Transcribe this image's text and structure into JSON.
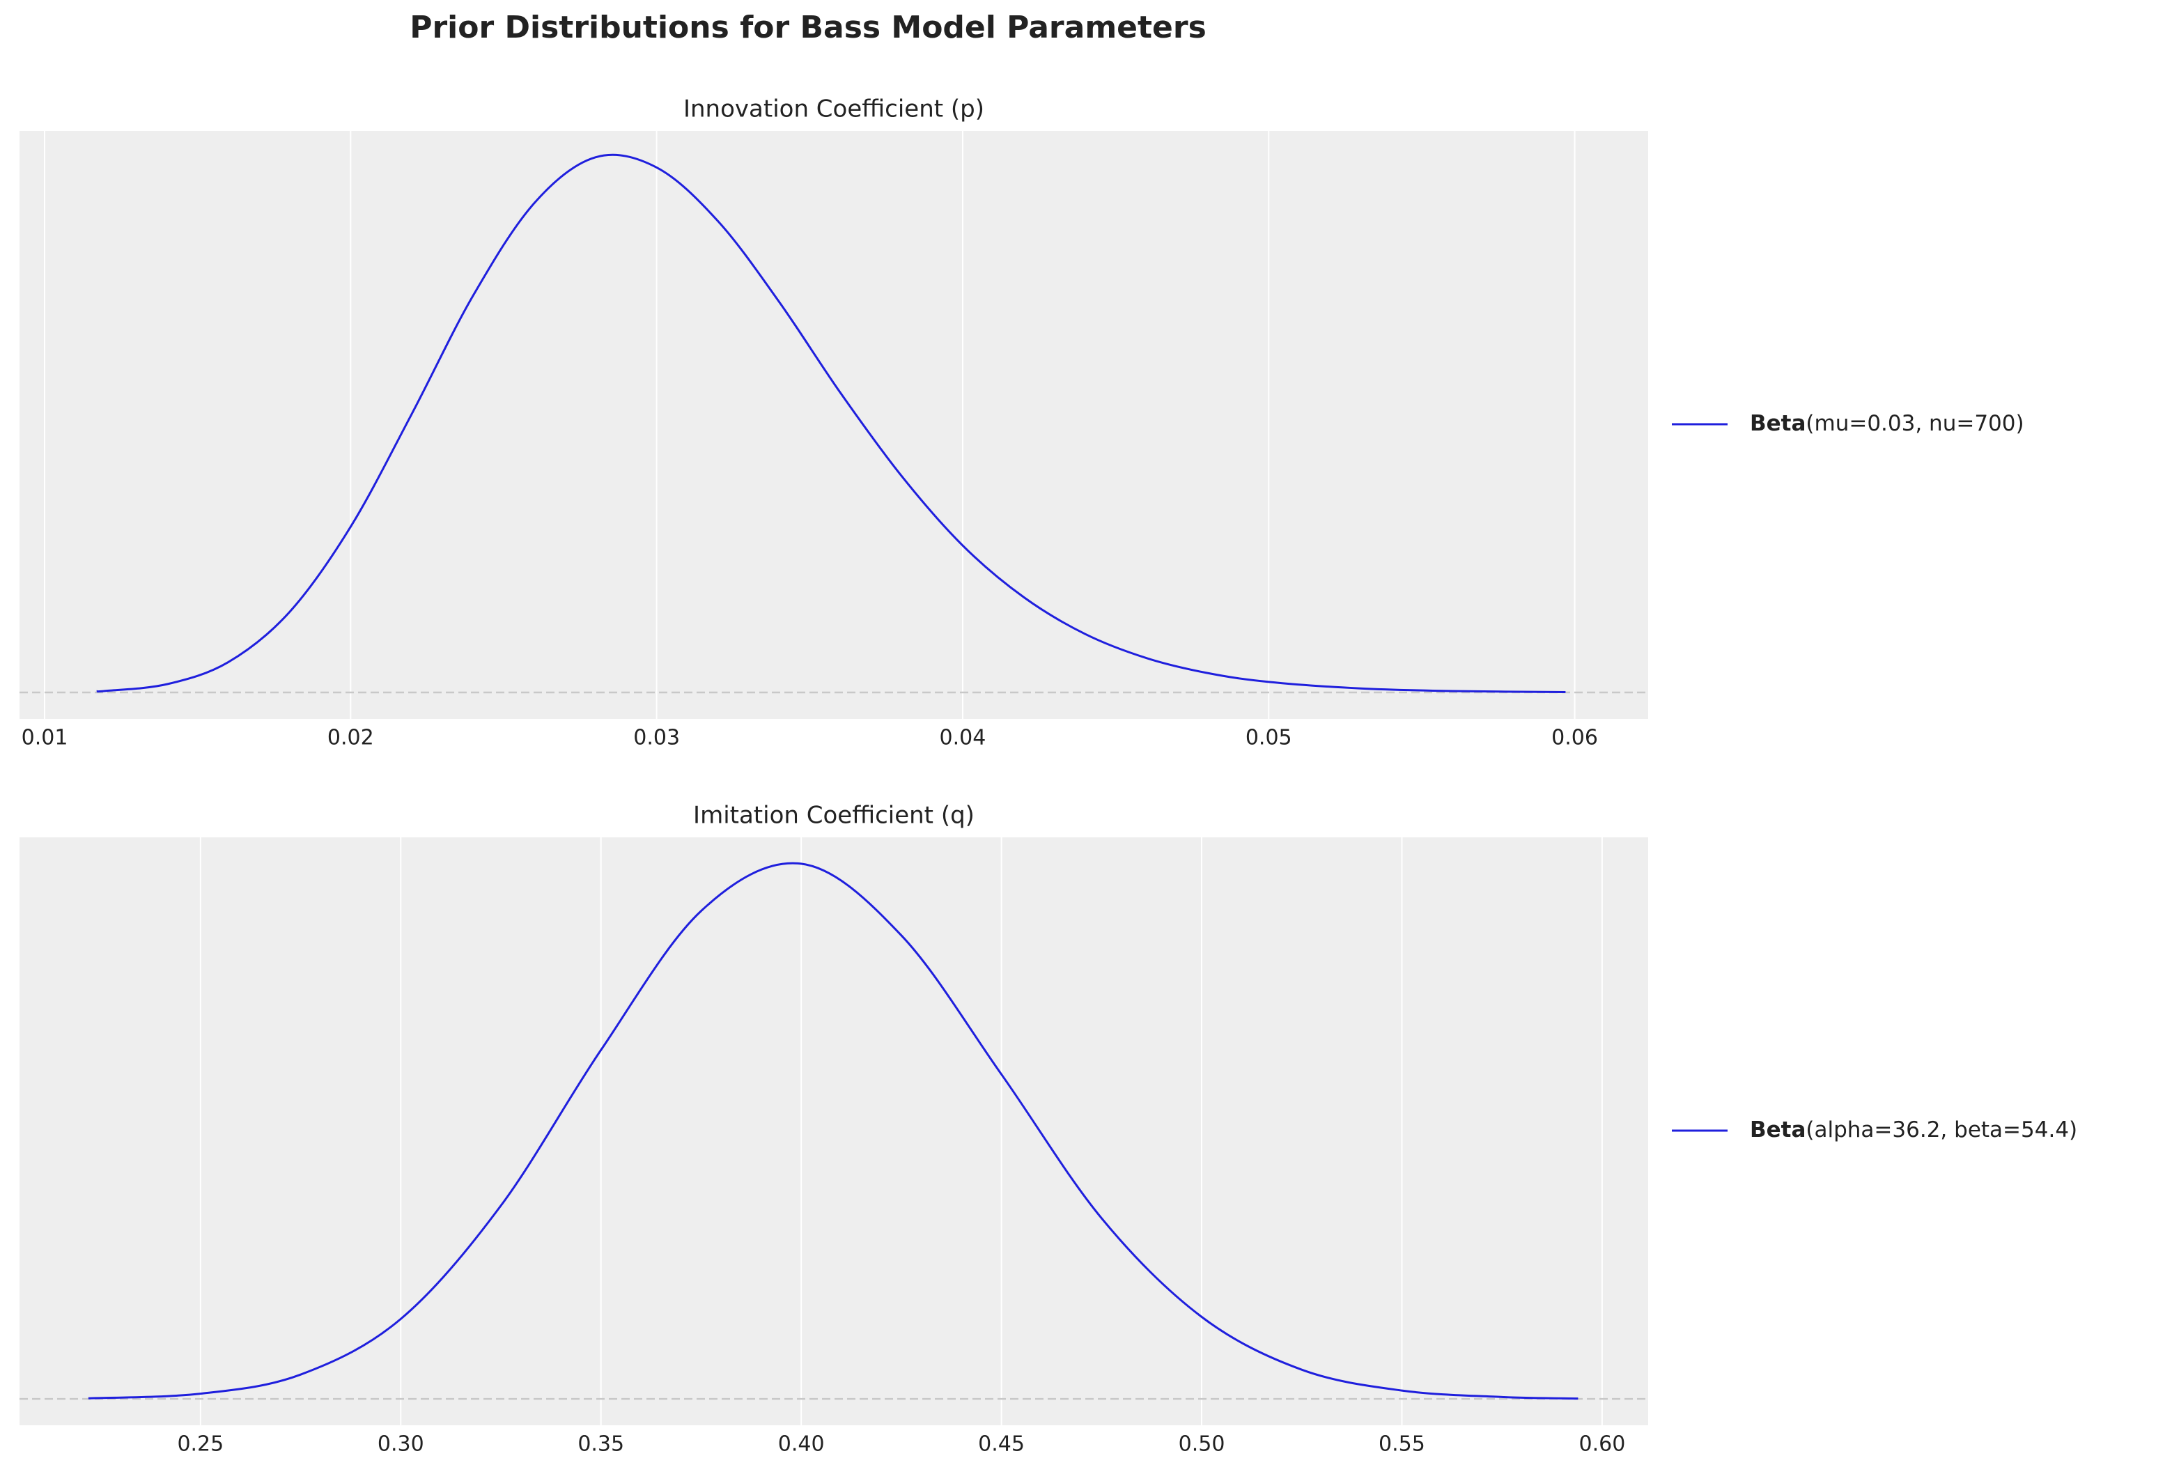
{
  "title": "Prior Distributions for Bass Model Parameters",
  "chart_data": [
    {
      "type": "line",
      "title": "Innovation Coefficient (p)",
      "x": [
        0.0117,
        0.012,
        0.014,
        0.016,
        0.018,
        0.02,
        0.022,
        0.024,
        0.026,
        0.028,
        0.03,
        0.032,
        0.034,
        0.036,
        0.038,
        0.04,
        0.042,
        0.044,
        0.046,
        0.048,
        0.05,
        0.053,
        0.056,
        0.0597
      ],
      "series": [
        {
          "name": "Beta(mu=0.03, nu=700)",
          "color": "#1f1fdd",
          "values": [
            0.14,
            0.18,
            0.97,
            3.56,
            9.45,
            19.5,
            32.8,
            46.7,
            57.6,
            63.0,
            61.8,
            55.5,
            46.0,
            35.3,
            25.5,
            17.3,
            11.2,
            6.88,
            4.05,
            2.28,
            1.24,
            0.47,
            0.16,
            0.04
          ]
        }
      ],
      "xlim": [
        0.00918,
        0.0624
      ],
      "xticks": [
        {
          "value": 0.01,
          "label": "0.01"
        },
        {
          "value": 0.02,
          "label": "0.02"
        },
        {
          "value": 0.03,
          "label": "0.03"
        },
        {
          "value": 0.04,
          "label": "0.04"
        },
        {
          "value": 0.05,
          "label": "0.05"
        },
        {
          "value": 0.06,
          "label": "0.06"
        }
      ],
      "ylim": [
        -3.12,
        66.1
      ],
      "hline": 0,
      "grid": true,
      "legend": "right"
    },
    {
      "type": "line",
      "title": "Imitation Coefficient (q)",
      "x": [
        0.222,
        0.25,
        0.275,
        0.3,
        0.325,
        0.35,
        0.375,
        0.4,
        0.425,
        0.45,
        0.475,
        0.5,
        0.525,
        0.55,
        0.575,
        0.594
      ],
      "series": [
        {
          "name": "Beta(alpha=36.2, beta=54.4)",
          "color": "#1f1fdd",
          "values": [
            0.008,
            0.075,
            0.35,
            1.15,
            2.78,
            5.02,
            7.02,
            7.7,
            6.67,
            4.67,
            2.6,
            1.18,
            0.42,
            0.12,
            0.027,
            0.005
          ]
        }
      ],
      "xlim": [
        0.2048,
        0.6115
      ],
      "xticks": [
        {
          "value": 0.25,
          "label": "0.25"
        },
        {
          "value": 0.3,
          "label": "0.30"
        },
        {
          "value": 0.35,
          "label": "0.35"
        },
        {
          "value": 0.4,
          "label": "0.40"
        },
        {
          "value": 0.45,
          "label": "0.45"
        },
        {
          "value": 0.5,
          "label": "0.50"
        },
        {
          "value": 0.55,
          "label": "0.55"
        },
        {
          "value": 0.6,
          "label": "0.60"
        }
      ],
      "ylim": [
        -0.38,
        8.08
      ],
      "hline": 0,
      "grid": true,
      "legend": "right"
    }
  ]
}
